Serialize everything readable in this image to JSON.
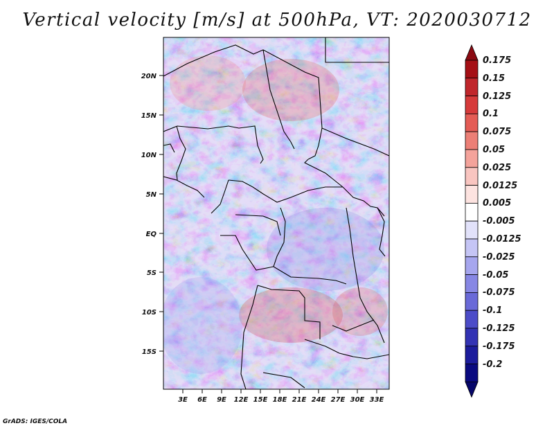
{
  "title": "Vertical velocity [m/s] at 500hPa, VT: 2020030712",
  "credit": "GrADS: IGES/COLA",
  "map": {
    "lat_labels": [
      "20N",
      "15N",
      "10N",
      "5N",
      "EQ",
      "5S",
      "10S",
      "15S"
    ],
    "lon_labels": [
      "3E",
      "6E",
      "9E",
      "12E",
      "15E",
      "18E",
      "21E",
      "24E",
      "27E",
      "30E",
      "33E"
    ]
  },
  "colorbar": {
    "levels": [
      "0.175",
      "0.15",
      "0.125",
      "0.1",
      "0.075",
      "0.05",
      "0.025",
      "0.0125",
      "0.005",
      "-0.005",
      "-0.0125",
      "-0.025",
      "-0.05",
      "-0.075",
      "-0.1",
      "-0.125",
      "-0.175",
      "-0.2"
    ],
    "colors": [
      "#a50f15",
      "#c0262b",
      "#d63a3a",
      "#e45c55",
      "#ec7f76",
      "#f4a39b",
      "#f9c5c0",
      "#fde3e0",
      "#ffffff",
      "#e2e2fa",
      "#c5c5f5",
      "#a6a6ee",
      "#8787e4",
      "#6a6ad8",
      "#4c4cc8",
      "#3333b4",
      "#1c1c9c",
      "#0a0a80"
    ],
    "top_color": "#8b0a12",
    "bottom_color": "#06066a"
  }
}
